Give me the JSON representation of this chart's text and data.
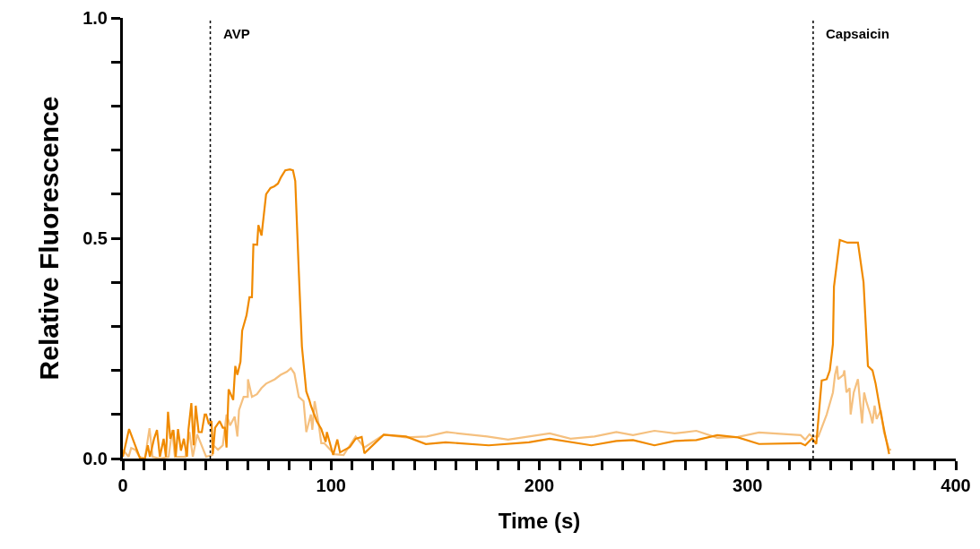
{
  "chart_data": {
    "type": "line",
    "xlabel": "Time (s)",
    "ylabel": "Relative Fluorescence",
    "xlim": [
      0,
      400
    ],
    "ylim": [
      0,
      1
    ],
    "xticks": [
      0,
      {
        "value": 10,
        "label": null
      },
      {
        "value": 20,
        "label": null
      },
      {
        "value": 30,
        "label": null
      },
      {
        "value": 40,
        "label": null
      },
      {
        "value": 50,
        "label": null
      },
      {
        "value": 60,
        "label": null
      },
      {
        "value": 70,
        "label": null
      },
      {
        "value": 80,
        "label": null
      },
      {
        "value": 90,
        "label": null
      },
      100,
      {
        "value": 110,
        "label": null
      },
      {
        "value": 120,
        "label": null
      },
      {
        "value": 130,
        "label": null
      },
      {
        "value": 140,
        "label": null
      },
      {
        "value": 150,
        "label": null
      },
      {
        "value": 160,
        "label": null
      },
      {
        "value": 170,
        "label": null
      },
      {
        "value": 180,
        "label": null
      },
      {
        "value": 190,
        "label": null
      },
      200,
      {
        "value": 210,
        "label": null
      },
      {
        "value": 220,
        "label": null
      },
      {
        "value": 230,
        "label": null
      },
      {
        "value": 240,
        "label": null
      },
      {
        "value": 250,
        "label": null
      },
      {
        "value": 260,
        "label": null
      },
      {
        "value": 270,
        "label": null
      },
      {
        "value": 280,
        "label": null
      },
      {
        "value": 290,
        "label": null
      },
      300,
      {
        "value": 310,
        "label": null
      },
      {
        "value": 320,
        "label": null
      },
      {
        "value": 330,
        "label": null
      },
      {
        "value": 340,
        "label": null
      },
      {
        "value": 350,
        "label": null
      },
      {
        "value": 360,
        "label": null
      },
      {
        "value": 370,
        "label": null
      },
      {
        "value": 380,
        "label": null
      },
      {
        "value": 390,
        "label": null
      },
      400
    ],
    "yticks": [
      {
        "value": 0,
        "label": "0.0"
      },
      {
        "value": 0.1,
        "label": null
      },
      {
        "value": 0.2,
        "label": null
      },
      {
        "value": 0.3,
        "label": null
      },
      {
        "value": 0.4,
        "label": null
      },
      {
        "value": 0.5,
        "label": "0.5"
      },
      {
        "value": 0.6,
        "label": null
      },
      {
        "value": 0.7,
        "label": null
      },
      {
        "value": 0.8,
        "label": null
      },
      {
        "value": 0.9,
        "label": null
      },
      {
        "value": 1,
        "label": "1.0"
      }
    ],
    "grid": false,
    "marker": "none",
    "line_style": "solid",
    "ref_lines": [
      {
        "axis": "x",
        "value": 42,
        "label": "AVP",
        "color": "#000000",
        "line_style": "dotted"
      },
      {
        "axis": "x",
        "value": 331.5,
        "label": "Capsaicin",
        "color": "#000000",
        "line_style": "dotted"
      }
    ],
    "series": [
      {
        "color": "#f5c07f",
        "x": [
          0,
          2.8,
          4,
          6,
          8,
          10.6,
          12.8,
          14.3,
          17.8,
          22,
          23.7,
          25,
          30,
          32,
          33.6,
          35.7,
          40,
          43,
          43.5,
          45.7,
          48,
          49.8,
          51.5,
          53.7,
          55,
          55.8,
          58,
          60,
          60.1,
          62,
          64.4,
          66.6,
          68.8,
          73,
          75.8,
          78.8,
          80.7,
          82.4,
          84.5,
          86.8,
          88.1,
          90.3,
          91,
          92.1,
          94,
          95.3,
          96.7,
          101.6,
          106,
          111.8,
          116,
          125.3,
          136,
          146,
          155.5,
          175,
          185,
          195,
          205,
          215,
          226.5,
          237,
          245,
          255.3,
          265,
          275.4,
          285.5,
          295.4,
          305.5,
          325.5,
          327.7,
          329.7,
          331,
          334,
          338,
          341,
          342,
          343,
          343.5,
          346,
          346.5,
          347.5,
          349,
          349.5,
          351,
          353,
          355,
          356,
          357,
          359,
          360,
          361,
          362,
          364,
          365.5,
          368,
          369
        ],
        "values": [
          0.02,
          0.004,
          0.024,
          0.02,
          0.004,
          0,
          0.069,
          0.004,
          0,
          0.004,
          0.065,
          0.004,
          0.004,
          0.06,
          0.004,
          0.055,
          0.004,
          0.008,
          0.03,
          0.02,
          0.03,
          0.1,
          0.075,
          0.095,
          0.05,
          0.11,
          0.14,
          0.14,
          0.18,
          0.14,
          0.146,
          0.16,
          0.17,
          0.18,
          0.19,
          0.197,
          0.205,
          0.193,
          0.14,
          0.13,
          0.06,
          0.1,
          0.065,
          0.13,
          0.08,
          0.035,
          0.035,
          0.01,
          0.008,
          0.05,
          0.025,
          0.054,
          0.048,
          0.05,
          0.06,
          0.05,
          0.043,
          0.05,
          0.057,
          0.045,
          0.05,
          0.06,
          0.053,
          0.063,
          0.057,
          0.063,
          0.047,
          0.049,
          0.059,
          0.053,
          0.043,
          0.055,
          0.05,
          0.05,
          0.1,
          0.15,
          0.19,
          0.21,
          0.18,
          0.19,
          0.2,
          0.15,
          0.16,
          0.1,
          0.15,
          0.18,
          0.08,
          0.15,
          0.13,
          0.1,
          0.08,
          0.12,
          0.09,
          0.11,
          0.06,
          0.02,
          0.02
        ]
      },
      {
        "color": "#f08a00",
        "x": [
          0,
          3,
          8.3,
          10.6,
          12,
          13,
          15,
          16.4,
          17.8,
          19.6,
          20.7,
          21.7,
          22.8,
          24.3,
          25.4,
          26.5,
          27.9,
          29.3,
          30.8,
          31.5,
          32.9,
          34,
          35,
          36.4,
          37.9,
          39.3,
          40,
          41.2,
          42.6,
          43.2,
          44.3,
          46.5,
          48,
          49,
          49.8,
          50.8,
          53,
          54,
          55,
          56.5,
          57.3,
          59.4,
          60.8,
          62,
          62.7,
          64.5,
          65.1,
          66.6,
          68.8,
          70.9,
          72.8,
          74.5,
          75.9,
          78,
          80.2,
          81.7,
          82.8,
          84.5,
          86,
          88.1,
          89.6,
          90.3,
          93.1,
          95.3,
          97.4,
          98,
          101,
          103,
          104.3,
          109,
          111.8,
          114.7,
          116,
          125.3,
          136,
          145.5,
          155,
          175.7,
          195,
          205,
          225,
          237,
          245,
          255.3,
          265,
          275.4,
          285.5,
          295.4,
          305.5,
          325.5,
          327.7,
          331,
          333,
          335.6,
          338,
          339.5,
          341,
          341.5,
          344.3,
          348,
          351.4,
          353,
          355.7,
          357.8,
          360,
          361.5,
          363.7,
          365.8,
          368
        ],
        "values": [
          0.004,
          0.067,
          0,
          0,
          0.03,
          0.004,
          0.045,
          0.065,
          0.004,
          0.045,
          0.004,
          0.106,
          0.045,
          0.065,
          0.004,
          0.067,
          0.018,
          0.045,
          0.004,
          0.065,
          0.126,
          0.03,
          0.12,
          0.06,
          0.06,
          0.1,
          0.1,
          0.08,
          0.085,
          0.01,
          0.07,
          0.085,
          0.07,
          0.07,
          0.025,
          0.157,
          0.133,
          0.21,
          0.19,
          0.22,
          0.29,
          0.325,
          0.366,
          0.366,
          0.486,
          0.485,
          0.53,
          0.506,
          0.6,
          0.614,
          0.618,
          0.624,
          0.638,
          0.654,
          0.656,
          0.654,
          0.63,
          0.425,
          0.254,
          0.152,
          0.132,
          0.12,
          0.085,
          0.067,
          0.038,
          0.06,
          0.008,
          0.043,
          0.014,
          0.026,
          0.045,
          0.049,
          0.012,
          0.054,
          0.05,
          0.033,
          0.037,
          0.03,
          0.037,
          0.045,
          0.03,
          0.04,
          0.042,
          0.03,
          0.04,
          0.042,
          0.053,
          0.048,
          0.033,
          0.035,
          0.03,
          0.046,
          0.033,
          0.177,
          0.18,
          0.2,
          0.26,
          0.39,
          0.496,
          0.49,
          0.49,
          0.49,
          0.4,
          0.21,
          0.2,
          0.17,
          0.11,
          0.06,
          0.01
        ]
      }
    ]
  }
}
